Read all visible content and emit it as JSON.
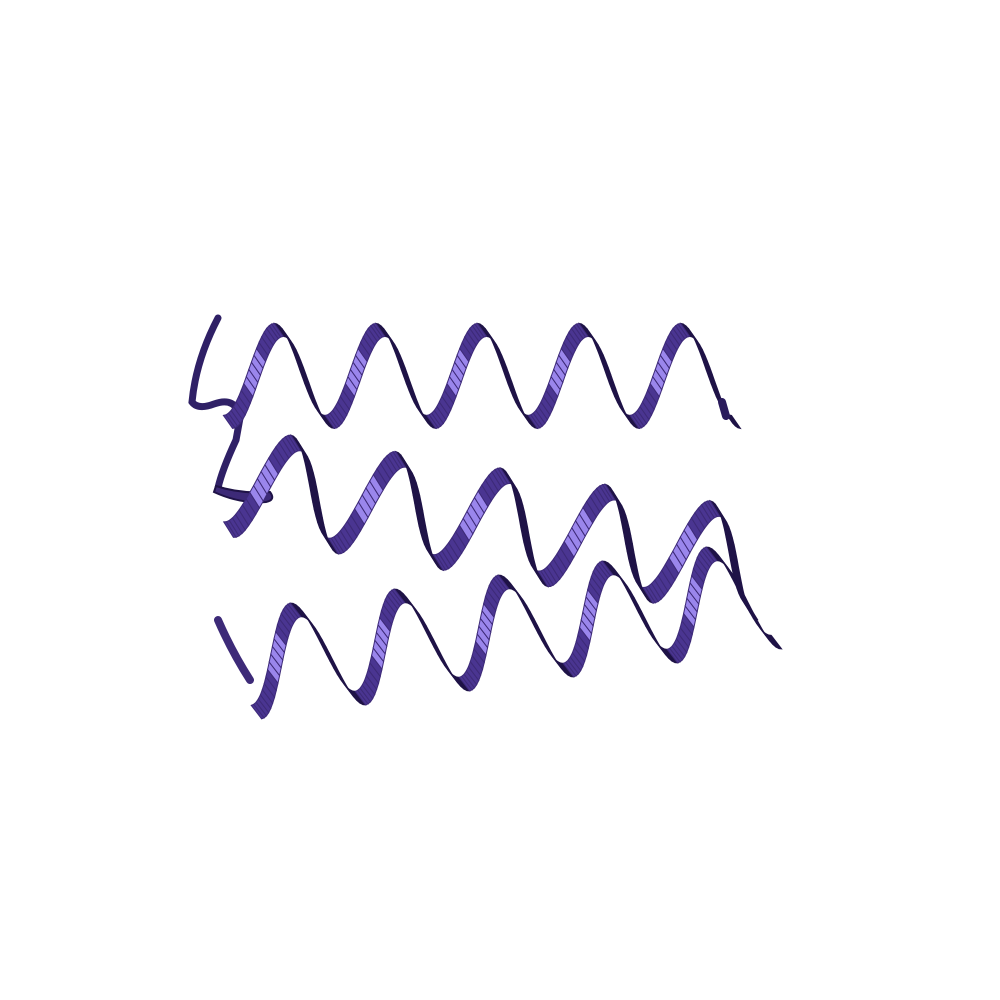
{
  "scene": {
    "subject": "protein-ribbon",
    "representation": "cartoon",
    "secondary_structure": [
      "alpha-helix",
      "alpha-helix",
      "alpha-helix"
    ],
    "background_color": "#ffffff",
    "colors": {
      "ribbon_base": "#3d2a78",
      "ribbon_dark": "#1f1347",
      "ribbon_mid": "#4a3591",
      "ribbon_highlight": "#9a86ec"
    }
  }
}
